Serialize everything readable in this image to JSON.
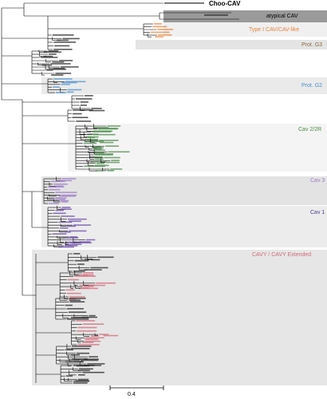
{
  "clades": [
    {
      "id": "choo",
      "label": "Choo-CAV",
      "color": "#000000",
      "shade": "none"
    },
    {
      "id": "atypical",
      "label": "atypical CAV",
      "color": "#000000",
      "shade": "#9a9a9a"
    },
    {
      "id": "typeI",
      "label": "Type I CAV/CAV-like",
      "color": "#e8803a",
      "shade": "#f0f0f0"
    },
    {
      "id": "protG3",
      "label": "Prot. G3",
      "color": "#8a6a3a",
      "shade": "#e4e4e4"
    },
    {
      "id": "protG2",
      "label": "Prot. G2",
      "color": "#4a90d0",
      "shade": "#eaeaea"
    },
    {
      "id": "cav22r",
      "label": "Cav 2/2R",
      "color": "#4a8a4a",
      "shade": "#f4f4f4"
    },
    {
      "id": "cav3",
      "label": "Cav 3",
      "color": "#9b7bc6",
      "shade": "#e3e3e3"
    },
    {
      "id": "cav1",
      "label": "Cav 1",
      "color": "#4b3a8a",
      "shade": "#ececec"
    },
    {
      "id": "cavy",
      "label": "CAVY / CAVY Extended",
      "color": "#d06a7a",
      "shade": "#e6e6e6"
    }
  ],
  "scale_bar": {
    "label": "0.4"
  },
  "colors": {
    "branch": "#000000",
    "tip_black": "#222222",
    "typeI": "#e8803a",
    "protG2": "#4a90d0",
    "cav22r": "#4a8a4a",
    "cav3": "#9b7bc6",
    "cav1": "#6a4aa8",
    "cavy": "#d06a7a"
  }
}
